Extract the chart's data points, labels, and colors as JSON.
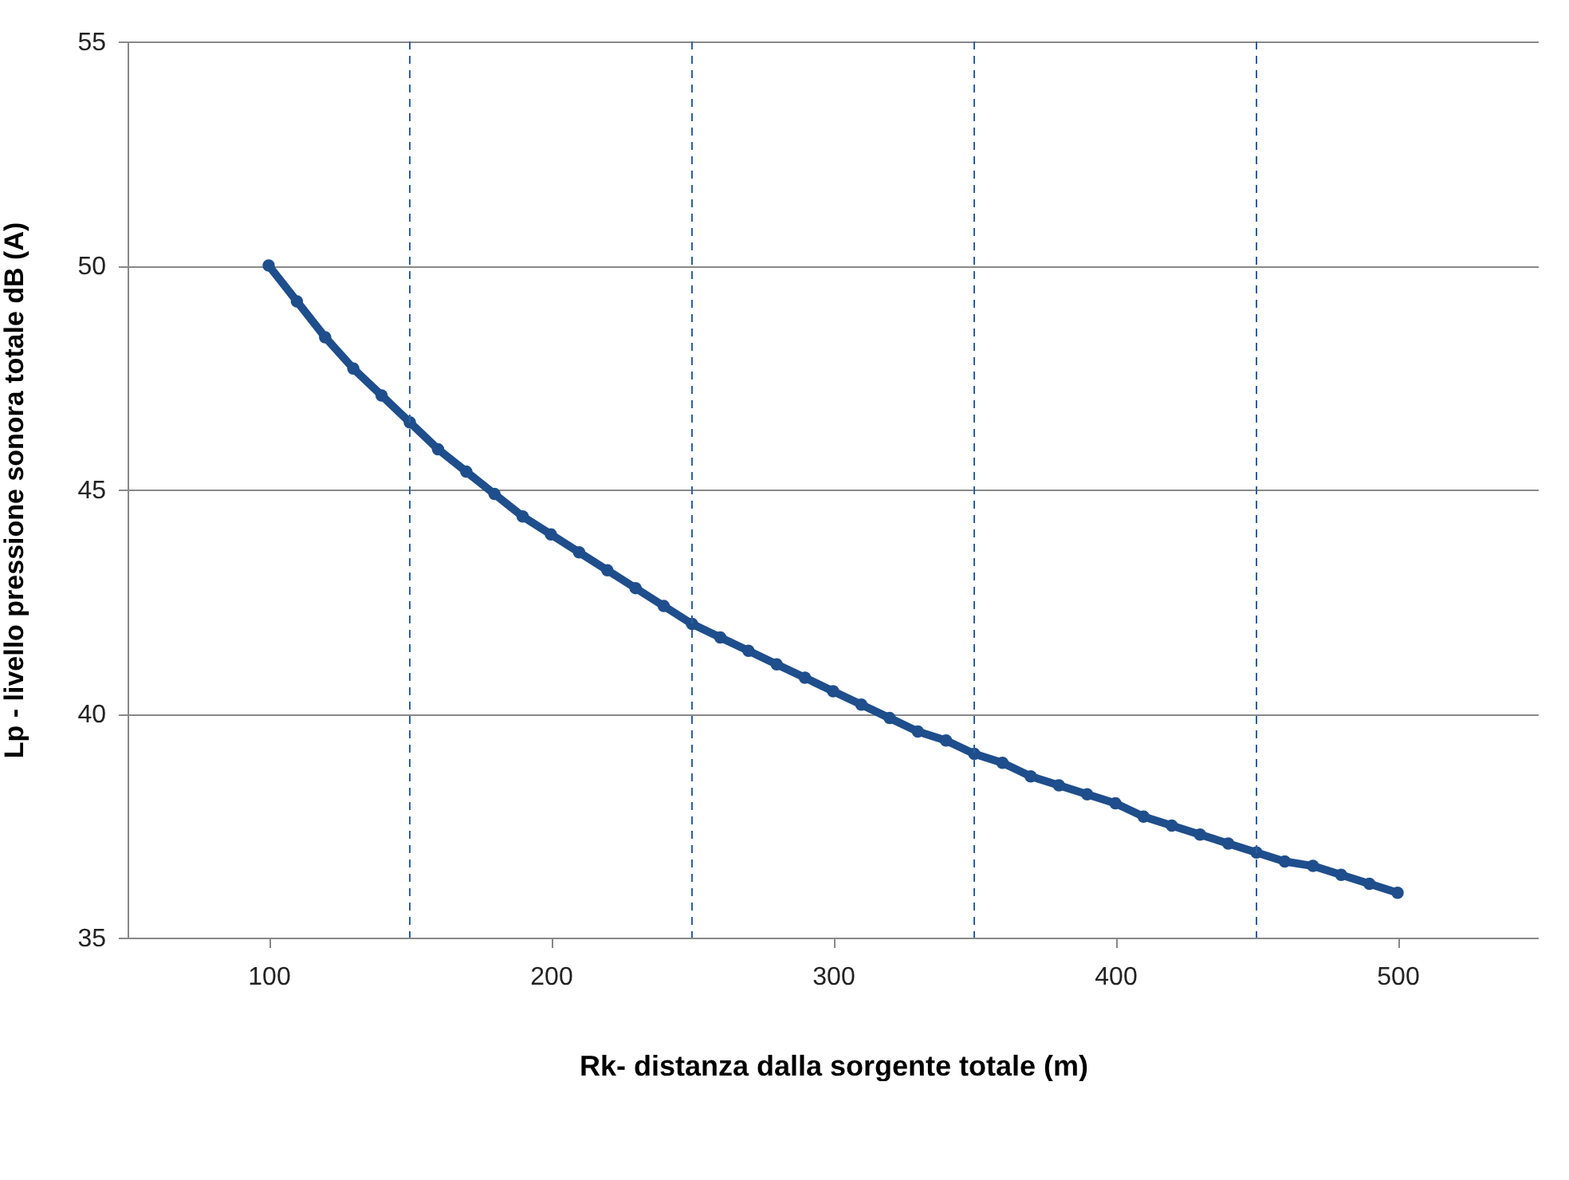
{
  "chart_data": {
    "type": "line",
    "xlabel": "Rk- distanza dalla sorgente totale (m)",
    "ylabel": "Lp - livello pressione sonora totale dB (A)",
    "x": [
      100,
      110,
      120,
      130,
      140,
      150,
      160,
      170,
      180,
      190,
      200,
      210,
      220,
      230,
      240,
      250,
      260,
      270,
      280,
      290,
      300,
      310,
      320,
      330,
      340,
      350,
      360,
      370,
      380,
      390,
      400,
      410,
      420,
      430,
      440,
      450,
      460,
      470,
      480,
      490,
      500
    ],
    "series": [
      {
        "color": "#1f4e8c",
        "values": [
          50.0,
          49.2,
          48.4,
          47.7,
          47.1,
          46.5,
          45.9,
          45.4,
          44.9,
          44.4,
          44.0,
          43.6,
          43.2,
          42.8,
          42.4,
          42.0,
          41.7,
          41.4,
          41.1,
          40.8,
          40.5,
          40.2,
          39.9,
          39.6,
          39.4,
          39.1,
          38.9,
          38.6,
          38.4,
          38.2,
          38.0,
          37.7,
          37.5,
          37.3,
          37.1,
          36.9,
          36.7,
          36.6,
          36.4,
          36.2,
          36.0
        ]
      }
    ],
    "xlim": [
      50,
      550
    ],
    "xticks": [
      100,
      200,
      300,
      400,
      500
    ],
    "ylim": [
      35,
      55
    ],
    "yticks": [
      35,
      40,
      45,
      50,
      55
    ],
    "grid": "y",
    "marker": "circle",
    "line_style": "solid",
    "ref_lines": [
      {
        "axis": "x",
        "value": 150,
        "line_style": "dashed",
        "color": "#2e5fa0"
      },
      {
        "axis": "x",
        "value": 250,
        "line_style": "dashed",
        "color": "#2e5fa0"
      },
      {
        "axis": "x",
        "value": 350,
        "line_style": "dashed",
        "color": "#2e5fa0"
      },
      {
        "axis": "x",
        "value": 450,
        "line_style": "dashed",
        "color": "#2e5fa0"
      }
    ]
  }
}
